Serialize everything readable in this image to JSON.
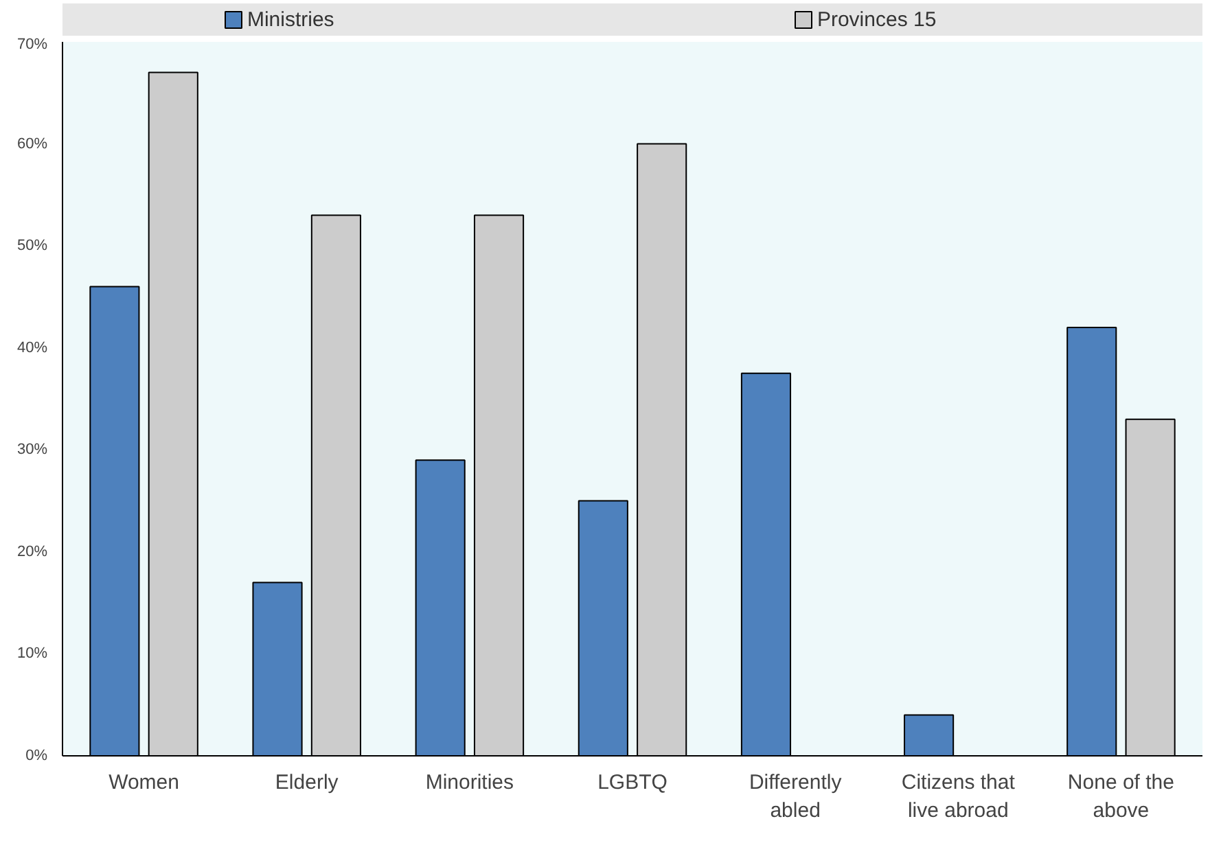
{
  "chart_data": {
    "type": "bar",
    "categories": [
      "Women",
      "Elderly",
      "Minorities",
      "LGBTQ",
      "Differently abled",
      "Citizens that live abroad",
      "None of the above"
    ],
    "series": [
      {
        "name": "Ministries",
        "color": "#4e81bd",
        "values": [
          46,
          17,
          29,
          25,
          37.5,
          4,
          42
        ]
      },
      {
        "name": "Provinces 15",
        "color": "#cccccc",
        "values": [
          67,
          53,
          53,
          60,
          null,
          null,
          33
        ]
      }
    ],
    "ylim": [
      0,
      70
    ],
    "yticks": [
      {
        "value": 0,
        "label": "0%"
      },
      {
        "value": 10,
        "label": "10%"
      },
      {
        "value": 20,
        "label": "20%"
      },
      {
        "value": 30,
        "label": "30%"
      },
      {
        "value": 40,
        "label": "40%"
      },
      {
        "value": 50,
        "label": "50%"
      },
      {
        "value": 60,
        "label": "60%"
      },
      {
        "value": 70,
        "label": "70%"
      }
    ],
    "grid": false,
    "legend": "top"
  }
}
